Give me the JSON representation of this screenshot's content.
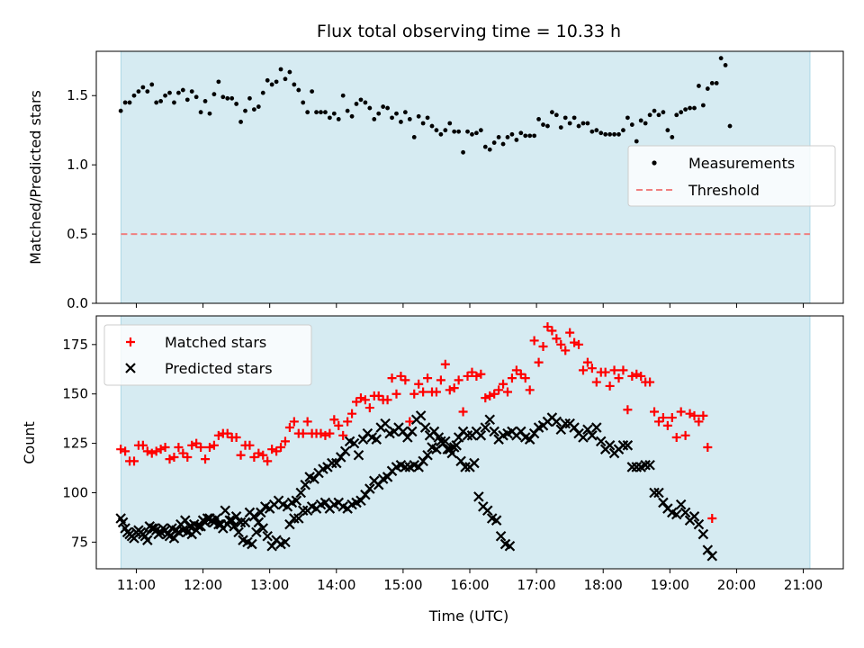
{
  "title": "Flux total observing time = 10.33 h",
  "colors": {
    "band": "#add8e6",
    "threshold": "#f08080",
    "measurement": "#000000",
    "matched": "#ff0000",
    "predicted": "#000000"
  },
  "chart_data": [
    {
      "type": "scatter",
      "panel": "top",
      "ylabel": "Matched/Predicted stars",
      "ylim": [
        0,
        1.82
      ],
      "yticks": [
        0.0,
        0.5,
        1.0,
        1.5
      ],
      "yticklabels": [
        "0.0",
        "0.5",
        "1.0",
        "1.5"
      ],
      "xlim_hours": [
        10.4,
        21.6
      ],
      "shaded_range_hours": [
        10.77,
        21.1
      ],
      "threshold": 0.5,
      "legend": {
        "placement": "right",
        "entries": [
          "Measurements",
          "Threshold"
        ]
      },
      "series": [
        {
          "name": "Measurements",
          "marker": "dot",
          "x_start": "10:46",
          "x_step_minutes": 4,
          "values": [
            1.39,
            1.45,
            1.45,
            1.5,
            1.53,
            1.56,
            1.53,
            1.58,
            1.45,
            1.46,
            1.5,
            1.52,
            1.45,
            1.52,
            1.54,
            1.47,
            1.53,
            1.49,
            1.38,
            1.46,
            1.37,
            1.51,
            1.6,
            1.49,
            1.48,
            1.48,
            1.44,
            1.31,
            1.39,
            1.48,
            1.4,
            1.42,
            1.52,
            1.61,
            1.58,
            1.6,
            1.69,
            1.62,
            1.67,
            1.58,
            1.54,
            1.45,
            1.38,
            1.53,
            1.38,
            1.38,
            1.38,
            1.34,
            1.37,
            1.33,
            1.5,
            1.39,
            1.35,
            1.44,
            1.47,
            1.45,
            1.41,
            1.33,
            1.37,
            1.42,
            1.41,
            1.34,
            1.37,
            1.31,
            1.38,
            1.33,
            1.2,
            1.35,
            1.3,
            1.34,
            1.28,
            1.25,
            1.22,
            1.25,
            1.3,
            1.24,
            1.24,
            1.09,
            1.24,
            1.22,
            1.23,
            1.25,
            1.13,
            1.11,
            1.16,
            1.2,
            1.15,
            1.2,
            1.22,
            1.18,
            1.23,
            1.21,
            1.21,
            1.21,
            1.33,
            1.29,
            1.28,
            1.38,
            1.36,
            1.27,
            1.34,
            1.3,
            1.34,
            1.28,
            1.3,
            1.3,
            1.24,
            1.25,
            1.23,
            1.22,
            1.22,
            1.22,
            1.22,
            1.25,
            1.34,
            1.29,
            1.17,
            1.32,
            1.3,
            1.36,
            1.39,
            1.36,
            1.38,
            1.25,
            1.2,
            1.36,
            1.38,
            1.4,
            1.41,
            1.41,
            1.57,
            1.43,
            1.55,
            1.59,
            1.59,
            1.77,
            1.72,
            1.28
          ]
        }
      ]
    },
    {
      "type": "scatter",
      "panel": "bottom",
      "ylabel": "Count",
      "xlabel": "Time (UTC)",
      "ylim": [
        61.5,
        189.5
      ],
      "yticks": [
        75,
        100,
        125,
        150,
        175
      ],
      "yticklabels": [
        "75",
        "100",
        "125",
        "150",
        "175"
      ],
      "xlim_hours": [
        10.4,
        21.6
      ],
      "xticks_hours": [
        11,
        12,
        13,
        14,
        15,
        16,
        17,
        18,
        19,
        20,
        21
      ],
      "xticklabels": [
        "11:00",
        "12:00",
        "13:00",
        "14:00",
        "15:00",
        "16:00",
        "17:00",
        "18:00",
        "19:00",
        "20:00",
        "21:00"
      ],
      "shaded_range_hours": [
        10.77,
        21.1
      ],
      "legend": {
        "placement": "top-left",
        "entries": [
          "Matched stars",
          "Predicted stars"
        ]
      },
      "series": [
        {
          "name": "Matched stars",
          "marker": "plus",
          "x_start": "10:46",
          "x_step_minutes": 4,
          "values": [
            122,
            121,
            116,
            116,
            124,
            124,
            121,
            120,
            121,
            122,
            123,
            117,
            118,
            123,
            120,
            118,
            124,
            125,
            123,
            117,
            123,
            124,
            129,
            130,
            130,
            128,
            128,
            119,
            124,
            124,
            118,
            120,
            119,
            116,
            122,
            121,
            123,
            126,
            133,
            136,
            130,
            130,
            136,
            130,
            130,
            130,
            129,
            130,
            137,
            134,
            129,
            136,
            140,
            146,
            148,
            147,
            143,
            149,
            149,
            147,
            147,
            158,
            150,
            159,
            157,
            136,
            150,
            155,
            151,
            158,
            151,
            151,
            157,
            165,
            152,
            153,
            157,
            141,
            159,
            161,
            159,
            160,
            148,
            149,
            150,
            152,
            155,
            151,
            158,
            162,
            160,
            158,
            152,
            177,
            166,
            174,
            184,
            182,
            178,
            175,
            172,
            181,
            176,
            175,
            162,
            166,
            163,
            156,
            161,
            161,
            154,
            162,
            158,
            162,
            142,
            159,
            160,
            159,
            156,
            156,
            141,
            136,
            138,
            134,
            138,
            128,
            141,
            129,
            140,
            139,
            136,
            139,
            123,
            87
          ]
        },
        {
          "name": "Predicted stars",
          "marker": "x",
          "x_start": "10:46",
          "x_step_minutes": 4,
          "values": [
            87,
            82,
            79,
            77,
            81,
            79,
            76,
            82,
            81,
            80,
            81,
            78,
            77,
            80,
            81,
            80,
            79,
            81,
            83,
            85,
            87,
            85,
            84,
            82,
            84,
            86,
            88,
            85,
            85,
            90,
            88,
            85,
            82,
            78,
            73,
            76,
            74,
            75,
            84,
            87,
            87,
            91,
            91,
            93,
            92,
            94,
            95,
            92,
            94,
            95,
            93,
            92,
            94,
            95,
            96,
            99,
            102,
            106,
            104,
            107,
            108,
            111,
            113,
            114,
            113,
            113,
            114,
            113,
            116,
            119,
            123,
            122,
            126,
            126,
            122,
            123,
            128,
            131,
            129,
            129,
            131,
            129,
            133,
            137,
            131,
            127,
            129,
            130,
            131,
            129,
            131,
            128,
            127,
            130,
            133,
            134,
            136,
            138,
            136,
            132,
            135,
            135,
            133,
            130,
            128,
            132,
            129,
            133,
            126,
            122,
            124,
            120,
            122,
            124,
            124,
            113,
            113,
            113,
            114,
            114,
            100,
            100,
            95,
            92,
            90,
            89,
            94,
            90,
            86,
            88,
            84,
            79,
            71,
            68
          ]
        },
        {
          "name": "",
          "marker": "x",
          "x_start": "10:48",
          "x_step_minutes": 4,
          "values": [
            85,
            80,
            78,
            80,
            80,
            78,
            83,
            82,
            79,
            82,
            79,
            82,
            81,
            84,
            86,
            83,
            84,
            83,
            86,
            87,
            86,
            87,
            84,
            91,
            86,
            83,
            80,
            76,
            75,
            74,
            80,
            90,
            93,
            92,
            94,
            96,
            94,
            93,
            95,
            96,
            100,
            104,
            108,
            107,
            110,
            112,
            113,
            115,
            115,
            118,
            121,
            126,
            125,
            119,
            127,
            130,
            128,
            127,
            133,
            135,
            130,
            131,
            133,
            131,
            128,
            131,
            137,
            139,
            133,
            129,
            131,
            128,
            125,
            122,
            120,
            124,
            116,
            113,
            113,
            115,
            98,
            93,
            91,
            87,
            86,
            78,
            74,
            73
          ]
        }
      ]
    }
  ]
}
